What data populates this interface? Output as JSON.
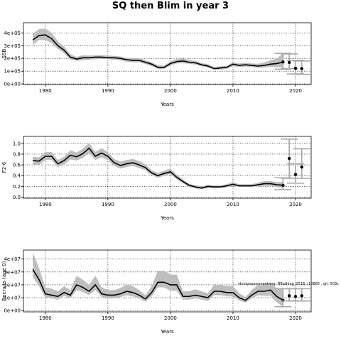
{
  "figure": {
    "title": "SQ then Blim in year 3",
    "annotation": "stockassessment.org: RBathing_2018, r10865 , git: 503c"
  },
  "chart_data": [
    {
      "type": "line",
      "panel": "ssb",
      "ylabel": "SSB",
      "xlabel": "Years",
      "xlim": [
        1976.5,
        2022.5
      ],
      "ylim": [
        -5000,
        480000
      ],
      "xticks": [
        1980,
        1990,
        2000,
        2010,
        2020
      ],
      "xtick_labels": [
        "1980",
        "1990",
        "2000",
        "2010",
        "2020"
      ],
      "yticks": [
        0,
        100000,
        200000,
        300000,
        400000
      ],
      "ytick_labels": [
        "0e+00",
        "1e+05",
        "2e+05",
        "3e+05",
        "4e+05"
      ],
      "grid": "dotted at ticks",
      "band_color": "#bebebe",
      "years": [
        1978,
        1979,
        1980,
        1981,
        1982,
        1983,
        1984,
        1985,
        1986,
        1987,
        1988,
        1989,
        1990,
        1991,
        1992,
        1993,
        1994,
        1995,
        1996,
        1997,
        1998,
        1999,
        2000,
        2001,
        2002,
        2003,
        2004,
        2005,
        2006,
        2007,
        2008,
        2009,
        2010,
        2011,
        2012,
        2013,
        2014,
        2015,
        2016,
        2017,
        2018
      ],
      "estimate": [
        345000,
        380000,
        385000,
        355000,
        300000,
        265000,
        210000,
        195000,
        205000,
        205000,
        210000,
        210000,
        205000,
        205000,
        200000,
        190000,
        185000,
        185000,
        170000,
        155000,
        130000,
        130000,
        160000,
        175000,
        180000,
        170000,
        165000,
        150000,
        140000,
        120000,
        125000,
        130000,
        155000,
        145000,
        150000,
        145000,
        140000,
        145000,
        155000,
        160000,
        170000
      ],
      "lower": [
        305000,
        345000,
        345000,
        320000,
        275000,
        240000,
        190000,
        180000,
        185000,
        190000,
        195000,
        195000,
        195000,
        190000,
        185000,
        175000,
        170000,
        170000,
        155000,
        140000,
        118000,
        118000,
        145000,
        160000,
        162000,
        158000,
        152000,
        138000,
        128000,
        110000,
        113000,
        118000,
        140000,
        132000,
        136000,
        132000,
        126000,
        128000,
        135000,
        130000,
        130000
      ],
      "upper": [
        395000,
        430000,
        435000,
        400000,
        335000,
        295000,
        232000,
        212000,
        225000,
        222000,
        225000,
        226000,
        222000,
        220000,
        215000,
        205000,
        200000,
        202000,
        186000,
        170000,
        145000,
        145000,
        176000,
        195000,
        200000,
        188000,
        180000,
        163000,
        155000,
        132000,
        138000,
        143000,
        170000,
        160000,
        166000,
        160000,
        158000,
        168000,
        185000,
        200000,
        240000
      ],
      "forecast": [
        {
          "year": 2018,
          "median": 172000,
          "low": 115000,
          "high": 240000
        },
        {
          "year": 2019,
          "median": 168000,
          "low": 120000,
          "high": 235000
        },
        {
          "year": 2020,
          "median": 122000,
          "low": 78000,
          "high": 185000
        },
        {
          "year": 2021,
          "median": 120000,
          "low": 75000,
          "high": 180000
        }
      ]
    },
    {
      "type": "line",
      "panel": "f",
      "ylabel": "F2-6",
      "xlabel": "Years",
      "xlim": [
        1976.5,
        2022.5
      ],
      "ylim": [
        -0.02,
        1.13
      ],
      "xticks": [
        1980,
        1990,
        2000,
        2010,
        2020
      ],
      "xtick_labels": [
        "1980",
        "1990",
        "2000",
        "2010",
        "2020"
      ],
      "yticks": [
        0.0,
        0.2,
        0.4,
        0.6,
        0.8,
        1.0
      ],
      "ytick_labels": [
        "0.0",
        "0.2",
        "0.4",
        "0.6",
        "0.8",
        "1.0"
      ],
      "grid": "dotted at ticks",
      "band_color": "#bebebe",
      "years": [
        1978,
        1979,
        1980,
        1981,
        1982,
        1983,
        1984,
        1985,
        1986,
        1987,
        1988,
        1989,
        1990,
        1991,
        1992,
        1993,
        1994,
        1995,
        1996,
        1997,
        1998,
        1999,
        2000,
        2001,
        2002,
        2003,
        2004,
        2005,
        2006,
        2007,
        2008,
        2009,
        2010,
        2011,
        2012,
        2013,
        2014,
        2015,
        2016,
        2017,
        2018
      ],
      "estimate": [
        0.68,
        0.67,
        0.76,
        0.76,
        0.62,
        0.68,
        0.78,
        0.75,
        0.81,
        0.91,
        0.76,
        0.82,
        0.76,
        0.64,
        0.59,
        0.62,
        0.64,
        0.6,
        0.55,
        0.45,
        0.4,
        0.44,
        0.47,
        0.37,
        0.29,
        0.22,
        0.19,
        0.17,
        0.2,
        0.19,
        0.19,
        0.21,
        0.24,
        0.21,
        0.21,
        0.21,
        0.23,
        0.25,
        0.25,
        0.23,
        0.22
      ],
      "lower": [
        0.61,
        0.6,
        0.69,
        0.69,
        0.56,
        0.61,
        0.7,
        0.68,
        0.73,
        0.82,
        0.69,
        0.74,
        0.69,
        0.58,
        0.53,
        0.56,
        0.58,
        0.54,
        0.5,
        0.41,
        0.36,
        0.4,
        0.43,
        0.33,
        0.26,
        0.19,
        0.16,
        0.15,
        0.17,
        0.16,
        0.17,
        0.18,
        0.21,
        0.19,
        0.19,
        0.19,
        0.2,
        0.21,
        0.21,
        0.19,
        0.17
      ],
      "upper": [
        0.75,
        0.74,
        0.84,
        0.84,
        0.69,
        0.75,
        0.87,
        0.83,
        0.9,
        1.01,
        0.84,
        0.91,
        0.84,
        0.71,
        0.66,
        0.69,
        0.71,
        0.67,
        0.61,
        0.5,
        0.45,
        0.49,
        0.53,
        0.42,
        0.33,
        0.25,
        0.22,
        0.2,
        0.23,
        0.22,
        0.22,
        0.24,
        0.28,
        0.24,
        0.24,
        0.24,
        0.27,
        0.3,
        0.3,
        0.28,
        0.28
      ],
      "forecast": [
        {
          "year": 2018,
          "median": 0.22,
          "low": 0.14,
          "high": 0.36
        },
        {
          "year": 2019,
          "median": 0.72,
          "low": 0.35,
          "high": 1.08
        },
        {
          "year": 2020,
          "median": 0.42,
          "low": 0.26,
          "high": 0.62
        },
        {
          "year": 2021,
          "median": 0.56,
          "low": 0.35,
          "high": 0.9
        }
      ]
    },
    {
      "type": "line",
      "panel": "rec",
      "ylabel": "Recruits (age 0)",
      "xlabel": "Years",
      "xlim": [
        1976.5,
        2022.5
      ],
      "ylim": [
        -1000000,
        47000000
      ],
      "xticks": [
        1980,
        1990,
        2000,
        2010,
        2020
      ],
      "xtick_labels": [
        "1980",
        "1990",
        "2000",
        "2010",
        "2020"
      ],
      "yticks": [
        0,
        10000000,
        20000000,
        30000000,
        40000000
      ],
      "ytick_labels": [
        "0e+00",
        "1e+07",
        "2e+07",
        "3e+07",
        "4e+07"
      ],
      "grid": "dotted at ticks",
      "band_color": "#bebebe",
      "years": [
        1978,
        1979,
        1980,
        1981,
        1982,
        1983,
        1984,
        1985,
        1986,
        1987,
        1988,
        1989,
        1990,
        1991,
        1992,
        1993,
        1994,
        1995,
        1996,
        1997,
        1998,
        1999,
        2000,
        2001,
        2002,
        2003,
        2004,
        2005,
        2006,
        2007,
        2008,
        2009,
        2010,
        2011,
        2012,
        2013,
        2014,
        2015,
        2016,
        2017,
        2018
      ],
      "estimate": [
        32000000,
        24000000,
        13000000,
        12000000,
        11000000,
        14000000,
        12000000,
        20000000,
        18000000,
        15000000,
        20000000,
        13000000,
        12000000,
        12000000,
        13000000,
        15000000,
        14000000,
        12000000,
        9000000,
        14000000,
        22000000,
        22000000,
        20000000,
        20000000,
        11000000,
        11000000,
        12000000,
        11000000,
        10000000,
        15000000,
        15000000,
        14000000,
        14000000,
        10000000,
        8000000,
        12000000,
        15000000,
        15000000,
        16000000,
        11000000,
        8000000
      ],
      "lower": [
        26000000,
        19000000,
        10000000,
        9500000,
        8500000,
        11500000,
        9500000,
        16000000,
        14500000,
        12000000,
        16000000,
        10500000,
        9500000,
        9500000,
        10500000,
        12000000,
        11000000,
        9500000,
        7000000,
        11000000,
        18000000,
        18000000,
        15500000,
        15500000,
        8500000,
        8500000,
        9500000,
        8500000,
        7500000,
        12000000,
        12000000,
        11000000,
        11000000,
        7800000,
        6200000,
        9500000,
        12000000,
        11500000,
        11500000,
        6500000,
        3000000
      ],
      "upper": [
        45000000,
        33000000,
        18000000,
        17000000,
        15000000,
        19000000,
        16000000,
        27000000,
        24000000,
        20000000,
        27000000,
        18000000,
        16000000,
        16000000,
        17500000,
        20000000,
        19000000,
        16000000,
        12000000,
        19000000,
        31000000,
        31000000,
        28000000,
        28000000,
        15000000,
        15000000,
        16500000,
        15000000,
        13500000,
        20000000,
        20000000,
        19000000,
        19000000,
        13500000,
        10500000,
        16000000,
        20000000,
        20500000,
        22000000,
        17000000,
        17000000
      ],
      "forecast": [
        {
          "year": 2018,
          "median": 8000000,
          "low": 3000000,
          "high": 17000000
        },
        {
          "year": 2019,
          "median": 11500000,
          "low": 7500000,
          "high": 17000000
        },
        {
          "year": 2020,
          "median": 11000000,
          "low": 7500000,
          "high": 17000000
        },
        {
          "year": 2021,
          "median": 11500000,
          "low": 7500000,
          "high": 17000000
        }
      ]
    }
  ]
}
